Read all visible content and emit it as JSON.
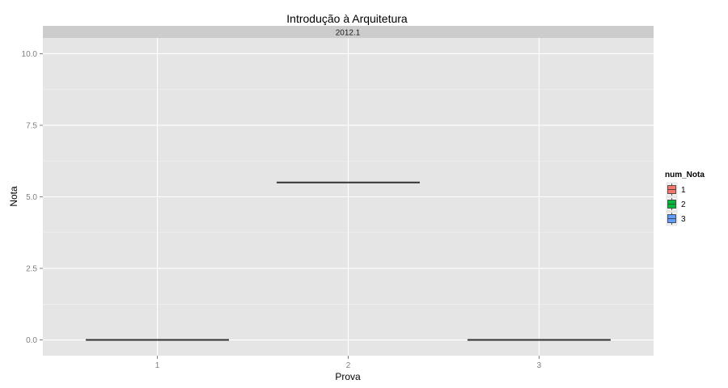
{
  "chart_data": {
    "type": "boxplot",
    "title": "Introdução à Arquitetura",
    "facet_label": "2012.1",
    "xlabel": "Prova",
    "ylabel": "Nota",
    "categories": [
      "1",
      "2",
      "3"
    ],
    "ylim": [
      -0.55,
      10.55
    ],
    "yticks": [
      0.0,
      2.5,
      5.0,
      7.5,
      10.0
    ],
    "ytick_labels": [
      "0.0",
      "2.5",
      "5.0",
      "7.5",
      "10.0"
    ],
    "grid": true,
    "legend_position": "right",
    "series": [
      {
        "name": "1",
        "category": "1",
        "min": 0.0,
        "q1": 0.0,
        "median": 0.0,
        "q3": 0.0,
        "max": 0.0,
        "color": "#F8766D"
      },
      {
        "name": "2",
        "category": "2",
        "min": 5.5,
        "q1": 5.5,
        "median": 5.5,
        "q3": 5.5,
        "max": 5.5,
        "color": "#00BA38"
      },
      {
        "name": "3",
        "category": "3",
        "min": 0.0,
        "q1": 0.0,
        "median": 0.0,
        "q3": 0.0,
        "max": 0.0,
        "color": "#619CFF"
      }
    ],
    "legend": {
      "title": "num_Nota",
      "entries": [
        {
          "label": "1",
          "color": "#F8766D"
        },
        {
          "label": "2",
          "color": "#00BA38"
        },
        {
          "label": "3",
          "color": "#619CFF"
        }
      ]
    }
  }
}
